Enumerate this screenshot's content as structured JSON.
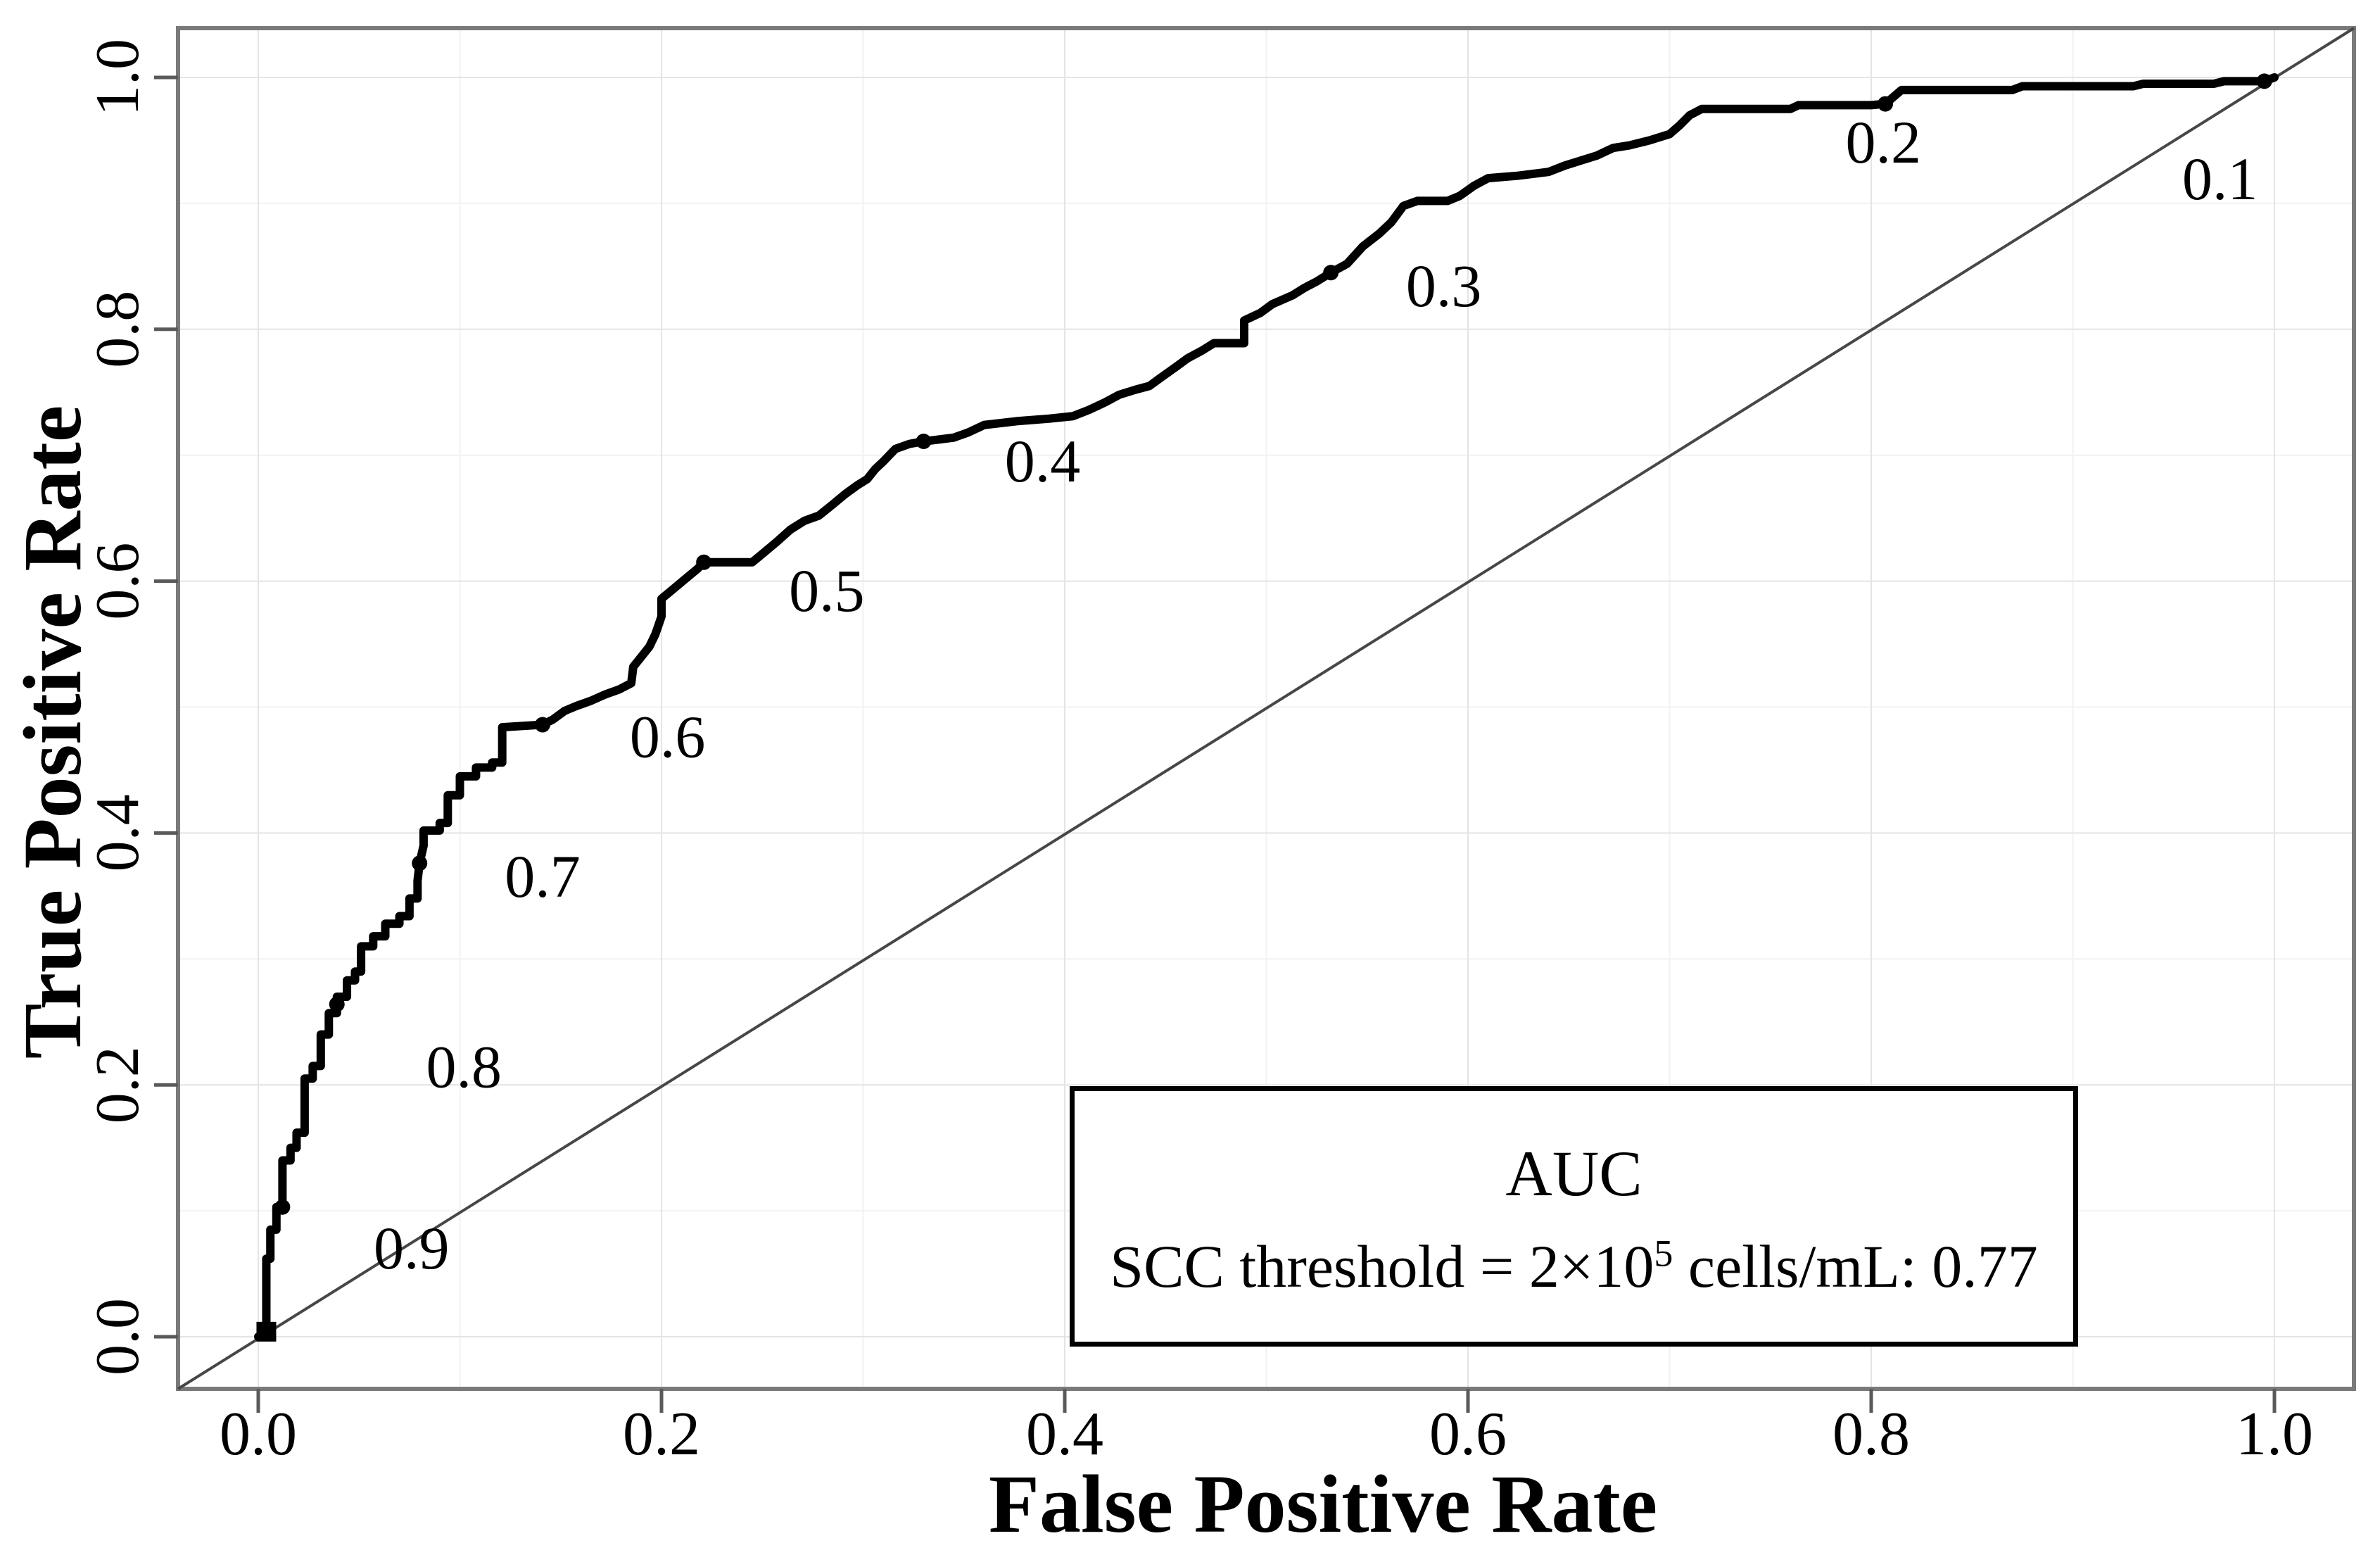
{
  "colors": {
    "background": "#ffffff",
    "curve": "#000000",
    "diagonal": "#474747",
    "panel_border": "#7a7a7a",
    "tick": "#5a5a5a",
    "grid_major": "#e4e4e4",
    "grid_minor": "#f2f2f2",
    "text": "#000000"
  },
  "chart_data": {
    "type": "line",
    "subtype": "roc-curve",
    "title": "",
    "xlabel": "False Positive Rate",
    "ylabel": "True Positive Rate",
    "x_ticks": [
      "0.0",
      "0.2",
      "0.4",
      "0.6",
      "0.8",
      "1.0"
    ],
    "y_ticks": [
      "0.0",
      "0.2",
      "0.4",
      "0.6",
      "0.8",
      "1.0"
    ],
    "xlim": [
      -0.04,
      1.04
    ],
    "ylim": [
      -0.04,
      1.04
    ],
    "grid": "major and minor gridlines, very light gray, white background",
    "diagonal_reference_line": true,
    "legend": {
      "position": "bottom-right",
      "title": "AUC",
      "entry_prefix": "SCC threshold = 2×10",
      "entry_superscript": "5",
      "entry_suffix": " cells/mL: 0.77",
      "auc_value": 0.77
    },
    "series": [
      {
        "name": "ROC curve (SCC threshold = 2×10⁵ cells/mL)",
        "points": [
          [
            0.0,
            0.0
          ],
          [
            0.004,
            0.0
          ],
          [
            0.004,
            0.062
          ],
          [
            0.006,
            0.062
          ],
          [
            0.006,
            0.085
          ],
          [
            0.009,
            0.085
          ],
          [
            0.009,
            0.103
          ],
          [
            0.012,
            0.103
          ],
          [
            0.012,
            0.14
          ],
          [
            0.016,
            0.14
          ],
          [
            0.016,
            0.15
          ],
          [
            0.019,
            0.15
          ],
          [
            0.019,
            0.162
          ],
          [
            0.023,
            0.162
          ],
          [
            0.023,
            0.205
          ],
          [
            0.027,
            0.205
          ],
          [
            0.027,
            0.215
          ],
          [
            0.031,
            0.215
          ],
          [
            0.031,
            0.24
          ],
          [
            0.035,
            0.24
          ],
          [
            0.035,
            0.257
          ],
          [
            0.039,
            0.257
          ],
          [
            0.039,
            0.27
          ],
          [
            0.044,
            0.27
          ],
          [
            0.044,
            0.283
          ],
          [
            0.048,
            0.283
          ],
          [
            0.048,
            0.29
          ],
          [
            0.051,
            0.29
          ],
          [
            0.051,
            0.31
          ],
          [
            0.057,
            0.31
          ],
          [
            0.057,
            0.318
          ],
          [
            0.063,
            0.318
          ],
          [
            0.063,
            0.328
          ],
          [
            0.07,
            0.328
          ],
          [
            0.07,
            0.334
          ],
          [
            0.075,
            0.334
          ],
          [
            0.075,
            0.348
          ],
          [
            0.079,
            0.348
          ],
          [
            0.079,
            0.362
          ],
          [
            0.08,
            0.376
          ],
          [
            0.082,
            0.39
          ],
          [
            0.082,
            0.402
          ],
          [
            0.09,
            0.402
          ],
          [
            0.09,
            0.408
          ],
          [
            0.094,
            0.408
          ],
          [
            0.094,
            0.43
          ],
          [
            0.1,
            0.43
          ],
          [
            0.1,
            0.445
          ],
          [
            0.108,
            0.445
          ],
          [
            0.108,
            0.452
          ],
          [
            0.116,
            0.452
          ],
          [
            0.116,
            0.456
          ],
          [
            0.121,
            0.456
          ],
          [
            0.121,
            0.484
          ],
          [
            0.141,
            0.486
          ],
          [
            0.146,
            0.49
          ],
          [
            0.152,
            0.497
          ],
          [
            0.158,
            0.501
          ],
          [
            0.165,
            0.505
          ],
          [
            0.172,
            0.51
          ],
          [
            0.179,
            0.514
          ],
          [
            0.185,
            0.519
          ],
          [
            0.186,
            0.532
          ],
          [
            0.19,
            0.54
          ],
          [
            0.194,
            0.548
          ],
          [
            0.197,
            0.558
          ],
          [
            0.2,
            0.572
          ],
          [
            0.2,
            0.586
          ],
          [
            0.206,
            0.594
          ],
          [
            0.212,
            0.602
          ],
          [
            0.218,
            0.61
          ],
          [
            0.221,
            0.615
          ],
          [
            0.245,
            0.615
          ],
          [
            0.251,
            0.623
          ],
          [
            0.257,
            0.631
          ],
          [
            0.264,
            0.641
          ],
          [
            0.271,
            0.648
          ],
          [
            0.278,
            0.652
          ],
          [
            0.285,
            0.661
          ],
          [
            0.291,
            0.669
          ],
          [
            0.297,
            0.676
          ],
          [
            0.302,
            0.681
          ],
          [
            0.306,
            0.689
          ],
          [
            0.31,
            0.695
          ],
          [
            0.316,
            0.705
          ],
          [
            0.323,
            0.709
          ],
          [
            0.33,
            0.711
          ],
          [
            0.345,
            0.714
          ],
          [
            0.352,
            0.718
          ],
          [
            0.36,
            0.724
          ],
          [
            0.376,
            0.727
          ],
          [
            0.392,
            0.729
          ],
          [
            0.404,
            0.731
          ],
          [
            0.412,
            0.736
          ],
          [
            0.42,
            0.742
          ],
          [
            0.427,
            0.748
          ],
          [
            0.435,
            0.752
          ],
          [
            0.442,
            0.755
          ],
          [
            0.448,
            0.762
          ],
          [
            0.455,
            0.77
          ],
          [
            0.461,
            0.777
          ],
          [
            0.468,
            0.783
          ],
          [
            0.474,
            0.789
          ],
          [
            0.489,
            0.789
          ],
          [
            0.489,
            0.807
          ],
          [
            0.497,
            0.813
          ],
          [
            0.503,
            0.82
          ],
          [
            0.513,
            0.827
          ],
          [
            0.519,
            0.833
          ],
          [
            0.525,
            0.838
          ],
          [
            0.532,
            0.845
          ],
          [
            0.54,
            0.852
          ],
          [
            0.548,
            0.866
          ],
          [
            0.556,
            0.876
          ],
          [
            0.562,
            0.885
          ],
          [
            0.568,
            0.898
          ],
          [
            0.575,
            0.902
          ],
          [
            0.59,
            0.902
          ],
          [
            0.596,
            0.906
          ],
          [
            0.603,
            0.914
          ],
          [
            0.61,
            0.92
          ],
          [
            0.625,
            0.922
          ],
          [
            0.64,
            0.925
          ],
          [
            0.648,
            0.93
          ],
          [
            0.656,
            0.934
          ],
          [
            0.664,
            0.938
          ],
          [
            0.672,
            0.944
          ],
          [
            0.68,
            0.946
          ],
          [
            0.69,
            0.95
          ],
          [
            0.7,
            0.955
          ],
          [
            0.705,
            0.962
          ],
          [
            0.71,
            0.97
          ],
          [
            0.716,
            0.975
          ],
          [
            0.76,
            0.975
          ],
          [
            0.764,
            0.978
          ],
          [
            0.8,
            0.978
          ],
          [
            0.807,
            0.979
          ],
          [
            0.815,
            0.99
          ],
          [
            0.87,
            0.99
          ],
          [
            0.875,
            0.993
          ],
          [
            0.93,
            0.993
          ],
          [
            0.935,
            0.995
          ],
          [
            0.97,
            0.995
          ],
          [
            0.975,
            0.997
          ],
          [
            0.995,
            0.997
          ],
          [
            1.0,
            1.0
          ]
        ]
      }
    ],
    "start_marker": {
      "x": 0.004,
      "y": 0.004
    },
    "threshold_dots": [
      {
        "label": "0.9",
        "x": 0.012,
        "y": 0.103
      },
      {
        "label": "0.8",
        "x": 0.039,
        "y": 0.264
      },
      {
        "label": "0.7",
        "x": 0.08,
        "y": 0.376
      },
      {
        "label": "0.6",
        "x": 0.141,
        "y": 0.486
      },
      {
        "label": "0.5",
        "x": 0.221,
        "y": 0.615
      },
      {
        "label": "0.4",
        "x": 0.33,
        "y": 0.711
      },
      {
        "label": "0.3",
        "x": 0.532,
        "y": 0.845
      },
      {
        "label": "0.2",
        "x": 0.807,
        "y": 0.979
      },
      {
        "label": "0.1",
        "x": 0.995,
        "y": 0.997
      }
    ],
    "threshold_labels": [
      {
        "text": "0.9",
        "x": 0.076,
        "y": 0.071
      },
      {
        "text": "0.8",
        "x": 0.102,
        "y": 0.215
      },
      {
        "text": "0.7",
        "x": 0.141,
        "y": 0.366
      },
      {
        "text": "0.6",
        "x": 0.203,
        "y": 0.477
      },
      {
        "text": "0.5",
        "x": 0.282,
        "y": 0.593
      },
      {
        "text": "0.4",
        "x": 0.389,
        "y": 0.696
      },
      {
        "text": "0.3",
        "x": 0.588,
        "y": 0.835
      },
      {
        "text": "0.2",
        "x": 0.806,
        "y": 0.949
      },
      {
        "text": "0.1",
        "x": 0.973,
        "y": 0.92
      }
    ]
  }
}
